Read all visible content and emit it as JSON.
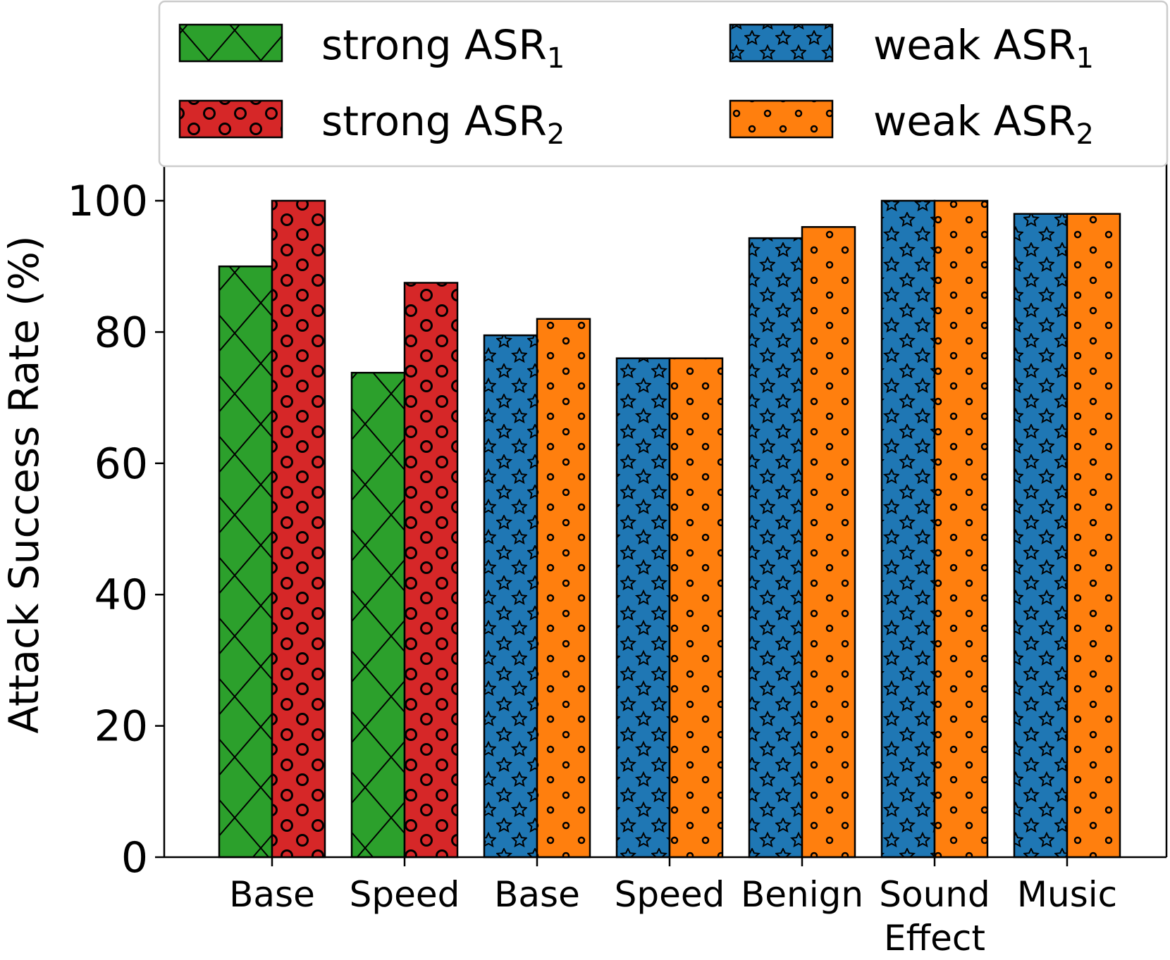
{
  "chart_data": {
    "type": "bar",
    "ylabel": "Attack Success Rate (%)",
    "ylim": [
      0,
      100
    ],
    "yticks": [
      "0",
      "20",
      "40",
      "60",
      "80",
      "100"
    ],
    "categories": [
      "Base",
      "Speed",
      "Base",
      "Speed",
      "Benign",
      "Sound\nEffect",
      "Music"
    ],
    "colors": {
      "green": "#2ca02c",
      "red": "#d62728",
      "blue": "#1f77b4",
      "orange": "#ff7f0e"
    },
    "legend": {
      "placement": "top",
      "entries": [
        {
          "label": "strong ASR",
          "subscript": "1",
          "color": "#2ca02c",
          "hatch": "x"
        },
        {
          "label": "weak ASR",
          "subscript": "1",
          "color": "#1f77b4",
          "hatch": "*"
        },
        {
          "label": "strong ASR",
          "subscript": "2",
          "color": "#d62728",
          "hatch": "o"
        },
        {
          "label": "weak ASR",
          "subscript": "2",
          "color": "#ff7f0e",
          "hatch": "."
        }
      ]
    },
    "groups": [
      {
        "category_index": 0,
        "bars": [
          {
            "series": "strong ASR1",
            "value": 90.0,
            "color": "#2ca02c",
            "hatch": "x"
          },
          {
            "series": "strong ASR2",
            "value": 100.0,
            "color": "#d62728",
            "hatch": "o"
          }
        ]
      },
      {
        "category_index": 1,
        "bars": [
          {
            "series": "strong ASR1",
            "value": 73.8,
            "color": "#2ca02c",
            "hatch": "x"
          },
          {
            "series": "strong ASR2",
            "value": 87.5,
            "color": "#d62728",
            "hatch": "o"
          }
        ]
      },
      {
        "category_index": 2,
        "bars": [
          {
            "series": "weak ASR1",
            "value": 79.5,
            "color": "#1f77b4",
            "hatch": "*"
          },
          {
            "series": "weak ASR2",
            "value": 82.0,
            "color": "#ff7f0e",
            "hatch": "."
          }
        ]
      },
      {
        "category_index": 3,
        "bars": [
          {
            "series": "weak ASR1",
            "value": 76.0,
            "color": "#1f77b4",
            "hatch": "*"
          },
          {
            "series": "weak ASR2",
            "value": 76.0,
            "color": "#ff7f0e",
            "hatch": "."
          }
        ]
      },
      {
        "category_index": 4,
        "bars": [
          {
            "series": "weak ASR1",
            "value": 94.3,
            "color": "#1f77b4",
            "hatch": "*"
          },
          {
            "series": "weak ASR2",
            "value": 96.0,
            "color": "#ff7f0e",
            "hatch": "."
          }
        ]
      },
      {
        "category_index": 5,
        "bars": [
          {
            "series": "weak ASR1",
            "value": 100.0,
            "color": "#1f77b4",
            "hatch": "*"
          },
          {
            "series": "weak ASR2",
            "value": 100.0,
            "color": "#ff7f0e",
            "hatch": "."
          }
        ]
      },
      {
        "category_index": 6,
        "bars": [
          {
            "series": "weak ASR1",
            "value": 98.0,
            "color": "#1f77b4",
            "hatch": "*"
          },
          {
            "series": "weak ASR2",
            "value": 98.0,
            "color": "#ff7f0e",
            "hatch": "."
          }
        ]
      }
    ]
  }
}
